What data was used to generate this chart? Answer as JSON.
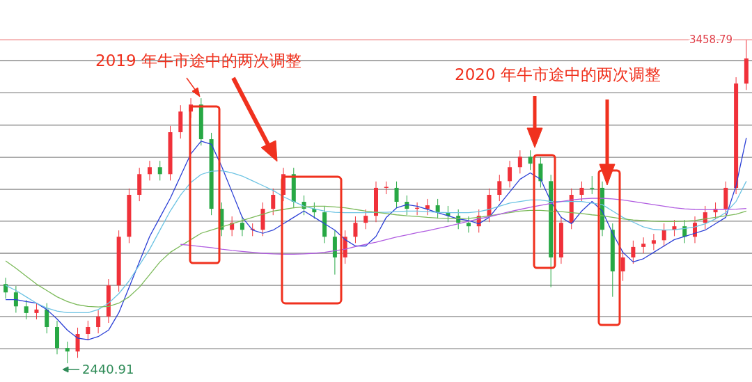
{
  "chart_data": {
    "type": "candlestick",
    "categories": [
      null,
      null,
      null,
      null,
      null,
      null,
      null,
      null,
      null,
      null,
      null,
      null,
      null,
      null,
      null,
      null,
      null,
      null,
      null,
      null,
      null,
      null,
      null,
      null,
      null,
      null,
      null,
      null,
      null,
      null,
      null,
      null,
      null,
      null,
      null,
      null,
      null,
      null,
      null,
      null,
      null,
      null,
      null,
      null,
      null,
      null,
      null,
      null,
      null,
      null,
      null,
      null,
      null,
      null,
      null,
      null,
      null,
      null,
      null,
      null,
      null,
      null,
      null,
      null,
      null,
      null,
      null,
      null,
      null,
      null,
      null,
      null,
      null
    ],
    "ohlc": [
      [
        2690,
        2710,
        2644,
        2664
      ],
      [
        2664,
        2684,
        2600,
        2620
      ],
      [
        2620,
        2640,
        2579,
        2599
      ],
      [
        2599,
        2630,
        2579,
        2610
      ],
      [
        2610,
        2630,
        2535,
        2555
      ],
      [
        2555,
        2575,
        2469,
        2489
      ],
      [
        2489,
        2509,
        2440.91,
        2478
      ],
      [
        2478,
        2553,
        2458,
        2533
      ],
      [
        2533,
        2575,
        2513,
        2555
      ],
      [
        2555,
        2608,
        2535,
        2588
      ],
      [
        2588,
        2706,
        2568,
        2686
      ],
      [
        2686,
        2859,
        2666,
        2839
      ],
      [
        2839,
        2991,
        2819,
        2971
      ],
      [
        2971,
        3056,
        2951,
        3036
      ],
      [
        3036,
        3078,
        3016,
        3058
      ],
      [
        3058,
        3078,
        3016,
        3036
      ],
      [
        3036,
        3188,
        3016,
        3168
      ],
      [
        3168,
        3253,
        3148,
        3233
      ],
      [
        3233,
        3275,
        3213,
        3255
      ],
      [
        3255,
        3275,
        3126,
        3146
      ],
      [
        3146,
        3166,
        2907,
        2927
      ],
      [
        2927,
        2947,
        2841,
        2861
      ],
      [
        2861,
        2903,
        2841,
        2883
      ],
      [
        2883,
        2903,
        2841,
        2861
      ],
      [
        2861,
        2881,
        2841,
        2864
      ],
      [
        2861,
        2947,
        2841,
        2927
      ],
      [
        2927,
        2991,
        2907,
        2971
      ],
      [
        2971,
        3056,
        2951,
        3036
      ],
      [
        3036,
        3056,
        2929,
        2949
      ],
      [
        2949,
        2969,
        2907,
        2927
      ],
      [
        2927,
        2947,
        2896,
        2916
      ],
      [
        2916,
        2936,
        2819,
        2839
      ],
      [
        2839,
        2859,
        2720,
        2774
      ],
      [
        2774,
        2859,
        2754,
        2839
      ],
      [
        2839,
        2903,
        2819,
        2883
      ],
      [
        2883,
        2925,
        2863,
        2905
      ],
      [
        2905,
        3013,
        2885,
        2993
      ],
      [
        2993,
        3013,
        2973,
        2996
      ],
      [
        2993,
        3013,
        2929,
        2949
      ],
      [
        2949,
        2969,
        2907,
        2927
      ],
      [
        2927,
        2947,
        2907,
        2930
      ],
      [
        2927,
        2958,
        2907,
        2938
      ],
      [
        2938,
        2958,
        2896,
        2916
      ],
      [
        2916,
        2936,
        2885,
        2905
      ],
      [
        2905,
        2925,
        2863,
        2883
      ],
      [
        2883,
        2903,
        2852,
        2872
      ],
      [
        2872,
        2925,
        2852,
        2905
      ],
      [
        2905,
        2991,
        2885,
        2971
      ],
      [
        2971,
        3034,
        2951,
        3014
      ],
      [
        3014,
        3078,
        2994,
        3058
      ],
      [
        3058,
        3111,
        3038,
        3091
      ],
      [
        3091,
        3111,
        3049,
        3069
      ],
      [
        3069,
        3089,
        2994,
        3014
      ],
      [
        3014,
        3034,
        2680,
        2774
      ],
      [
        2774,
        2903,
        2754,
        2883
      ],
      [
        2883,
        2991,
        2863,
        2971
      ],
      [
        2971,
        3013,
        2951,
        2993
      ],
      [
        2993,
        3030,
        2973,
        2990
      ],
      [
        2993,
        3013,
        2841,
        2861
      ],
      [
        2861,
        2881,
        2650,
        2730
      ],
      [
        2730,
        2794,
        2700,
        2774
      ],
      [
        2774,
        2827,
        2754,
        2807
      ],
      [
        2807,
        2837,
        2787,
        2817
      ],
      [
        2817,
        2848,
        2797,
        2828
      ],
      [
        2828,
        2881,
        2808,
        2861
      ],
      [
        2861,
        2892,
        2841,
        2872
      ],
      [
        2872,
        2892,
        2819,
        2839
      ],
      [
        2839,
        2903,
        2819,
        2883
      ],
      [
        2883,
        2936,
        2863,
        2916
      ],
      [
        2916,
        2947,
        2896,
        2927
      ],
      [
        2927,
        3013,
        2907,
        2993
      ],
      [
        2993,
        3341,
        2973,
        3321
      ],
      [
        3321,
        3458.79,
        3301,
        3400
      ]
    ],
    "series": [
      {
        "type": "line",
        "color": "#2b3fd6",
        "values": [
          2641,
          2641,
          2635,
          2630,
          2610,
          2580,
          2545,
          2520,
          2515,
          2525,
          2545,
          2600,
          2680,
          2760,
          2840,
          2900,
          2960,
          3030,
          3100,
          3140,
          3130,
          3060,
          2980,
          2900,
          2860,
          2850,
          2860,
          2880,
          2900,
          2920,
          2900,
          2880,
          2860,
          2830,
          2810,
          2810,
          2840,
          2900,
          2930,
          2940,
          2935,
          2925,
          2915,
          2905,
          2895,
          2890,
          2880,
          2900,
          2940,
          2980,
          3020,
          3040,
          3020,
          2950,
          2900,
          2880,
          2920,
          2950,
          2920,
          2850,
          2790,
          2760,
          2770,
          2790,
          2810,
          2830,
          2840,
          2850,
          2860,
          2880,
          2900,
          3000,
          3150
        ]
      },
      {
        "type": "line",
        "color": "#6cc3e3",
        "values": [
          2686,
          2670,
          2650,
          2630,
          2615,
          2605,
          2600,
          2600,
          2600,
          2610,
          2630,
          2660,
          2700,
          2750,
          2800,
          2860,
          2920,
          2970,
          3010,
          3035,
          3045,
          3047,
          3040,
          3030,
          3015,
          3000,
          2985,
          2965,
          2950,
          2935,
          2927,
          2920,
          2916,
          2915,
          2915,
          2915,
          2916,
          2916,
          2918,
          2920,
          2920,
          2918,
          2916,
          2915,
          2915,
          2915,
          2918,
          2925,
          2935,
          2945,
          2950,
          2955,
          2955,
          2950,
          2950,
          2950,
          2950,
          2945,
          2940,
          2920,
          2900,
          2885,
          2870,
          2862,
          2860,
          2861,
          2865,
          2870,
          2880,
          2895,
          2915,
          2950,
          3014
        ]
      },
      {
        "type": "line",
        "color": "#7cba5a",
        "values": [
          2763,
          2740,
          2715,
          2690,
          2670,
          2650,
          2635,
          2625,
          2620,
          2618,
          2620,
          2630,
          2650,
          2680,
          2720,
          2760,
          2790,
          2810,
          2830,
          2850,
          2860,
          2870,
          2880,
          2890,
          2900,
          2910,
          2920,
          2925,
          2930,
          2933,
          2935,
          2935,
          2933,
          2930,
          2925,
          2920,
          2916,
          2912,
          2908,
          2905,
          2903,
          2900,
          2898,
          2897,
          2896,
          2897,
          2900,
          2905,
          2910,
          2915,
          2920,
          2922,
          2922,
          2920,
          2918,
          2915,
          2912,
          2908,
          2905,
          2900,
          2895,
          2892,
          2890,
          2888,
          2887,
          2887,
          2888,
          2890,
          2895,
          2900,
          2905,
          2910,
          2920
        ]
      },
      {
        "type": "line",
        "color": "#b05ce0",
        "values": [
          null,
          null,
          null,
          null,
          null,
          null,
          null,
          null,
          null,
          null,
          null,
          null,
          null,
          null,
          null,
          null,
          null,
          2815,
          2812,
          2808,
          2805,
          2800,
          2796,
          2793,
          2790,
          2787,
          2785,
          2784,
          2784,
          2785,
          2787,
          2790,
          2795,
          2800,
          2808,
          2815,
          2822,
          2830,
          2838,
          2845,
          2852,
          2858,
          2865,
          2872,
          2880,
          2888,
          2895,
          2902,
          2910,
          2918,
          2925,
          2932,
          2938,
          2944,
          2950,
          2955,
          2958,
          2960,
          2960,
          2958,
          2955,
          2950,
          2945,
          2940,
          2935,
          2930,
          2927,
          2925,
          2924,
          2924,
          2925,
          2926,
          2928
        ]
      }
    ],
    "ylim": [
      2382,
      3584
    ],
    "yticks": [
      {
        "value": 2487,
        "label": null
      },
      {
        "value": 2588,
        "label": null
      },
      {
        "value": 2686,
        "label": null
      },
      {
        "value": 2787,
        "label": null
      },
      {
        "value": 2888,
        "label": null
      },
      {
        "value": 2988,
        "label": null
      },
      {
        "value": 3089,
        "label": null
      },
      {
        "value": 3190,
        "label": null
      },
      {
        "value": 3292,
        "label": null
      },
      {
        "value": 3393,
        "label": null
      }
    ],
    "grid": "y",
    "ref_lines": [
      {
        "axis": "y",
        "value": 3458.79,
        "label": "3458.79",
        "color": "#f08a8a"
      }
    ],
    "annotations": [
      "2019 年牛市途中的两次调整",
      "2020 年牛市途中的两次调整",
      "2440.91"
    ]
  }
}
